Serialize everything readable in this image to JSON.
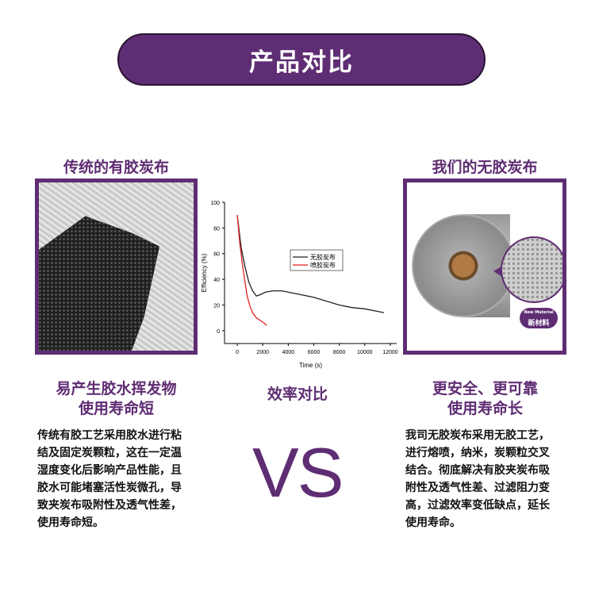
{
  "title": "产品对比",
  "left": {
    "heading": "传统的有胶炭布",
    "sub_line1": "易产生胶水挥发物",
    "sub_line2": "使用寿命短",
    "body": [
      "传统有胶工艺采用胶水进行粘",
      "结及固定炭颗粒，这在一定温",
      "湿度变化后影响产品性能，且",
      "胶水可能堵塞活性炭微孔，导",
      "致夹炭布吸附性及透气性差，",
      "使用寿命短。"
    ]
  },
  "right": {
    "heading": "我们的无胶炭布",
    "badge_small": "New Material",
    "badge_large": "新材料",
    "sub_line1": "更安全、更可靠",
    "sub_line2": "使用寿命长",
    "body": [
      "我司无胶炭布采用无胶工艺，",
      "进行熔喷，纳米，炭颗粒交叉",
      "结合。彻底解决有胶夹炭布吸",
      "附性及透气性差、过滤阻力变",
      "高，过滤效率变低缺点，延长",
      "使用寿命。"
    ]
  },
  "center": {
    "caption": "效率对比",
    "vs": "VS"
  },
  "colors": {
    "accent": "#5f2d73"
  },
  "chart_data": {
    "type": "line",
    "xlabel": "Time (s)",
    "ylabel": "Efficiency (%)",
    "xlim": [
      -1000,
      12500
    ],
    "ylim": [
      -10,
      100
    ],
    "xticks": [
      0,
      2000,
      4000,
      6000,
      8000,
      10000,
      12000
    ],
    "yticks": [
      0,
      20,
      40,
      60,
      80,
      100
    ],
    "legend_position": "center-right",
    "series": [
      {
        "name": "无胶炭布",
        "color": "#222222",
        "x": [
          0,
          300,
          600,
          900,
          1200,
          1500,
          1800,
          2200,
          2800,
          3500,
          4000,
          5000,
          6000,
          7000,
          8000,
          9000,
          10000,
          11000,
          11500
        ],
        "y": [
          90,
          65,
          50,
          38,
          31,
          27,
          28,
          30,
          31,
          31,
          30,
          28,
          26,
          23,
          20,
          18,
          17,
          15,
          14
        ]
      },
      {
        "name": "喷胶炭布",
        "color": "#e02020",
        "x": [
          0,
          200,
          400,
          600,
          800,
          1000,
          1200,
          1500,
          1800,
          2100,
          2300
        ],
        "y": [
          90,
          68,
          52,
          38,
          26,
          19,
          14,
          10,
          8,
          6,
          4
        ]
      }
    ]
  }
}
